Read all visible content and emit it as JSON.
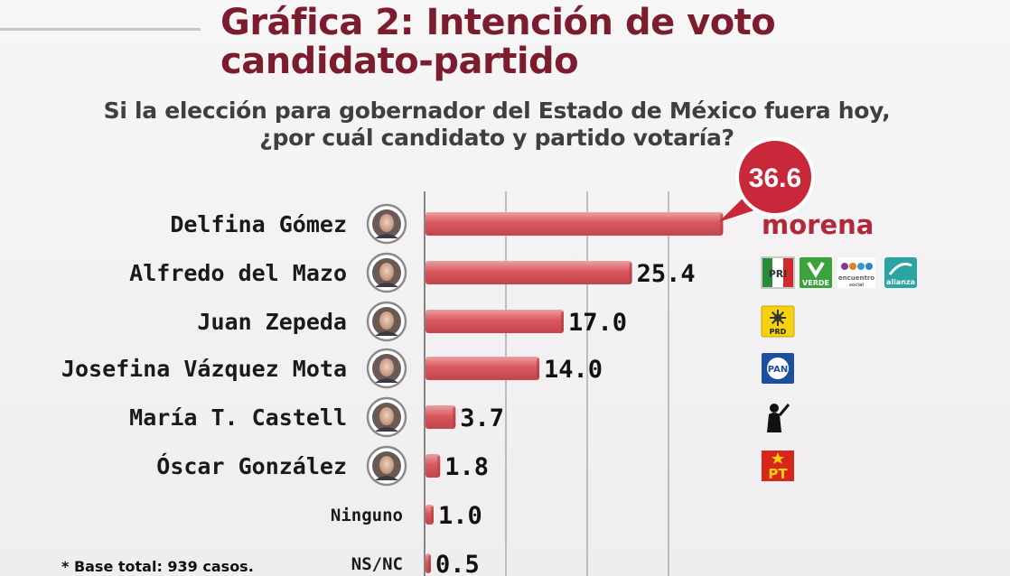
{
  "title": "Gráfica 2: Intención de voto candidato-partido",
  "title_lines": [
    "Gráfica 2: Intención de voto",
    "candidato-partido"
  ],
  "subtitle_lines": [
    "Si la elección para gobernador del Estado de México fuera hoy,",
    "¿por cuál candidato y partido votaría?"
  ],
  "footnote": "* Base total: 939 casos.",
  "colors": {
    "title": "#7b1d2e",
    "bar": "#d9585e",
    "bar_light": "#ee9fa2",
    "callout": "#c8283a",
    "morena": "#b1283b"
  },
  "chart_data": {
    "type": "bar",
    "orientation": "horizontal",
    "categories": [
      "Delfina Gómez",
      "Alfredo del Mazo",
      "Juan Zepeda",
      "Josefina Vázquez Mota",
      "María T. Castell",
      "Óscar González",
      "Ninguno",
      "NS/NC"
    ],
    "values": [
      36.6,
      25.4,
      17.0,
      14.0,
      3.7,
      1.8,
      1.0,
      0.5
    ],
    "value_labels": [
      "36.6",
      "25.4",
      "17.0",
      "14.0",
      "3.7",
      "1.8",
      "1.0",
      "0.5"
    ],
    "xlim": [
      0,
      40
    ],
    "grid": true,
    "highlight": {
      "category": "Delfina Gómez",
      "label": "36.6"
    },
    "parties": [
      {
        "candidate": "Delfina Gómez",
        "logos": [
          "morena"
        ],
        "text": "morena"
      },
      {
        "candidate": "Alfredo del Mazo",
        "logos": [
          "PRI",
          "VERDE",
          "encuentro social",
          "alianza"
        ]
      },
      {
        "candidate": "Juan Zepeda",
        "logos": [
          "PRD"
        ]
      },
      {
        "candidate": "Josefina Vázquez Mota",
        "logos": [
          "PAN"
        ]
      },
      {
        "candidate": "María T. Castell",
        "logos": [
          "independent-silhouette"
        ]
      },
      {
        "candidate": "Óscar González",
        "logos": [
          "PT"
        ]
      }
    ]
  }
}
